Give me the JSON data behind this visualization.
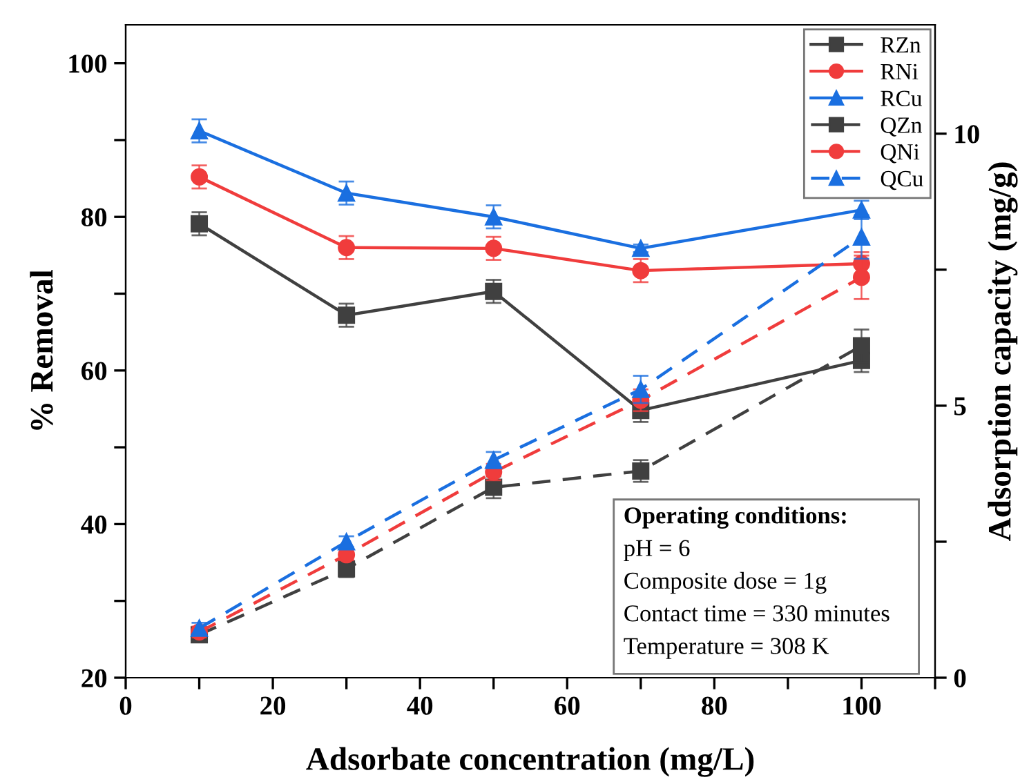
{
  "chart_data": {
    "type": "line",
    "xlabel": "Adsorbate concentration (mg/L)",
    "ylabel": "% Removal",
    "y2label": "Adsorption capacity (mg/g)",
    "x": [
      10,
      30,
      50,
      70,
      100
    ],
    "xlim": [
      0,
      110
    ],
    "xticks": [
      0,
      {
        "value": 10,
        "label": null
      },
      20,
      {
        "value": 30,
        "label": null
      },
      40,
      {
        "value": 50,
        "label": null
      },
      60,
      {
        "value": 70,
        "label": null
      },
      80,
      {
        "value": 90,
        "label": null
      },
      100,
      {
        "value": 110,
        "label": null
      }
    ],
    "ylim": [
      20,
      105
    ],
    "yticks": [
      20,
      {
        "value": 30,
        "label": null
      },
      40,
      {
        "value": 50,
        "label": null
      },
      60,
      {
        "value": 70,
        "label": null
      },
      80,
      {
        "value": 90,
        "label": null
      },
      100
    ],
    "y2lim": [
      0,
      12
    ],
    "y2ticks": [
      0,
      {
        "value": 2.5,
        "label": null
      },
      5,
      {
        "value": 7.5,
        "label": null
      },
      10
    ],
    "grid": false,
    "legend": "top right",
    "series": [
      {
        "name": "RZn",
        "color": "#404040",
        "marker": "square",
        "line_style": "solid",
        "values": [
          79.1,
          67.2,
          70.3,
          54.8,
          61.3
        ],
        "errors": [
          1.5,
          1.5,
          1.5,
          1.5,
          1.5
        ]
      },
      {
        "name": "RNi",
        "color": "#f03c3c",
        "marker": "circle",
        "line_style": "solid",
        "values": [
          85.2,
          76.0,
          75.9,
          73.0,
          73.9
        ],
        "errors": [
          1.5,
          1.5,
          1.5,
          1.5,
          1.5
        ]
      },
      {
        "name": "RCu",
        "color": "#1a6fe0",
        "marker": "triangle",
        "line_style": "solid",
        "values": [
          91.2,
          83.1,
          80.0,
          75.9,
          80.9
        ],
        "errors": [
          1.5,
          1.5,
          1.5,
          0.5,
          1.2
        ]
      },
      {
        "name": "QZn",
        "color": "#404040",
        "marker": "square",
        "line_style": "dashed",
        "axis": "y2",
        "values": [
          0.79,
          2.0,
          3.5,
          3.8,
          6.1
        ],
        "errors": [
          0.1,
          0.15,
          0.2,
          0.2,
          0.3
        ]
      },
      {
        "name": "QNi",
        "color": "#f03c3c",
        "marker": "circle",
        "line_style": "dashed",
        "axis": "y2",
        "values": [
          0.84,
          2.26,
          3.78,
          5.1,
          7.36
        ],
        "errors": [
          0.1,
          0.1,
          0.15,
          0.2,
          0.4
        ]
      },
      {
        "name": "QCu",
        "color": "#1a6fe0",
        "marker": "triangle",
        "line_style": "dashed",
        "axis": "y2",
        "values": [
          0.91,
          2.5,
          4.0,
          5.3,
          8.1
        ],
        "errors": [
          0.1,
          0.1,
          0.15,
          0.25,
          0.4
        ]
      }
    ],
    "annotations": [
      "Operating conditions:",
      "pH = 6",
      "Composite dose = 1g",
      "Contact time = 330 minutes",
      "Temperature = 308 K"
    ]
  }
}
